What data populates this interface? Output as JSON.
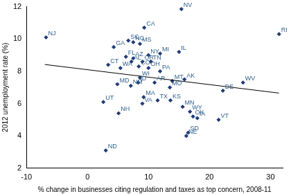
{
  "chart_data": {
    "type": "scatter",
    "x_label": "% change in businesses citing regulation and taxes as top concern, 2008-11",
    "y_label": "2012 unemployment rate (%)",
    "xlim": [
      -10,
      32
    ],
    "xticks": [
      -10,
      0,
      10,
      20,
      30
    ],
    "ylim": [
      2,
      12
    ],
    "yticks": [
      2,
      4,
      6,
      8,
      10,
      12
    ],
    "grid": false,
    "color": "#1f3a78",
    "marker": "diamond",
    "points": [
      {
        "label": "NV",
        "x": 15.4,
        "y": 11.85
      },
      {
        "label": "NJ",
        "x": -6.8,
        "y": 10.1
      },
      {
        "label": "RI",
        "x": 31.4,
        "y": 10.3
      },
      {
        "label": "CA",
        "x": 9.3,
        "y": 10.7
      },
      {
        "label": "SC",
        "x": 6.7,
        "y": 9.9
      },
      {
        "label": "NC",
        "x": 7.5,
        "y": 9.8
      },
      {
        "label": "MS",
        "x": 8.6,
        "y": 9.7
      },
      {
        "label": "GA",
        "x": 4.3,
        "y": 9.5
      },
      {
        "label": "IL",
        "x": 15.0,
        "y": 9.2
      },
      {
        "label": "FL",
        "x": 6.3,
        "y": 8.9
      },
      {
        "label": "AZ",
        "x": 7.5,
        "y": 8.8
      },
      {
        "label": "NY",
        "x": 10.0,
        "y": 9.0
      },
      {
        "label": "MI",
        "x": 11.9,
        "y": 9.1
      },
      {
        "label": "AL",
        "x": 7.2,
        "y": 8.6
      },
      {
        "label": "OR",
        "x": 9.0,
        "y": 8.6
      },
      {
        "label": "TN",
        "x": 10.4,
        "y": 8.6
      },
      {
        "label": "CT",
        "x": 3.4,
        "y": 8.4
      },
      {
        "label": "WA",
        "x": 5.4,
        "y": 8.2
      },
      {
        "label": "CO",
        "x": 8.4,
        "y": 8.3
      },
      {
        "label": "OH",
        "x": 10.0,
        "y": 8.2
      },
      {
        "label": "PA",
        "x": 11.9,
        "y": 8.0
      },
      {
        "label": "AK",
        "x": 15.9,
        "y": 7.5
      },
      {
        "label": "WI",
        "x": 8.6,
        "y": 7.6
      },
      {
        "label": "AR",
        "x": 11.0,
        "y": 7.3
      },
      {
        "label": "MT",
        "x": 13.9,
        "y": 7.4
      },
      {
        "label": "MO",
        "x": 13.5,
        "y": 7.0
      },
      {
        "label": "MD",
        "x": 4.9,
        "y": 7.2
      },
      {
        "label": "NM",
        "x": 7.1,
        "y": 7.1
      },
      {
        "label": "ID",
        "x": 8.3,
        "y": 7.3
      },
      {
        "label": "WV",
        "x": 25.5,
        "y": 7.3
      },
      {
        "label": "DE",
        "x": 22.2,
        "y": 6.8
      },
      {
        "label": "UT",
        "x": 2.6,
        "y": 6.1
      },
      {
        "label": "MA",
        "x": 9.2,
        "y": 6.4
      },
      {
        "label": "VA",
        "x": 9.0,
        "y": 6.0
      },
      {
        "label": "NH",
        "x": 5.1,
        "y": 5.4
      },
      {
        "label": "TX",
        "x": 11.5,
        "y": 6.2
      },
      {
        "label": "KS",
        "x": 13.6,
        "y": 6.2
      },
      {
        "label": "MN",
        "x": 15.6,
        "y": 5.8
      },
      {
        "label": "WY",
        "x": 16.8,
        "y": 5.5
      },
      {
        "label": "OK",
        "x": 17.3,
        "y": 5.2
      },
      {
        "label": "IA",
        "x": 18.0,
        "y": 5.1
      },
      {
        "label": "VT",
        "x": 21.5,
        "y": 5.0
      },
      {
        "label": "SD",
        "x": 16.5,
        "y": 4.2
      },
      {
        "label": "NE",
        "x": 16.2,
        "y": 4.0
      },
      {
        "label": "ND",
        "x": 3.0,
        "y": 3.1
      }
    ],
    "trend_line": {
      "x": [
        -7,
        31.4
      ],
      "y": [
        8.42,
        6.65
      ],
      "color": "#000000"
    }
  }
}
